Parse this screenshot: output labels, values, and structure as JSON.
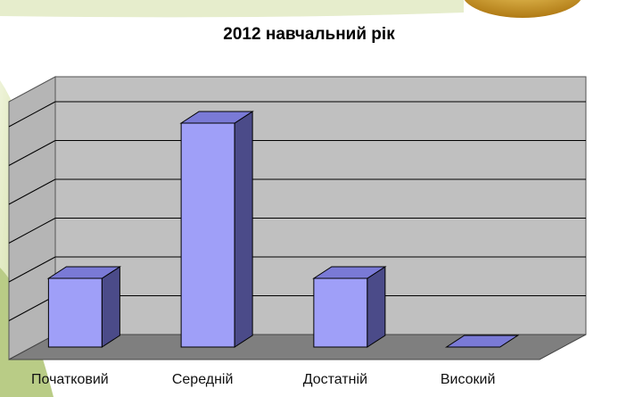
{
  "chart_data": {
    "type": "bar",
    "title": "2012 навчальний рік",
    "categories": [
      "Початковий",
      "Середній",
      "Достатній",
      "Високий"
    ],
    "values": [
      2,
      6,
      2,
      0
    ],
    "ylim": [
      0,
      6
    ],
    "xlabel": "",
    "ylabel": "",
    "grid": true,
    "style": "3d",
    "colors": {
      "bar_front": "#9f9ff8",
      "bar_side": "#4b4b89",
      "bar_top": "#7a7ad6",
      "wall": "#c0c0c0",
      "floor": "#7f7f7f",
      "gridline": "#000000",
      "background_decor": "#dfe9b7"
    }
  }
}
